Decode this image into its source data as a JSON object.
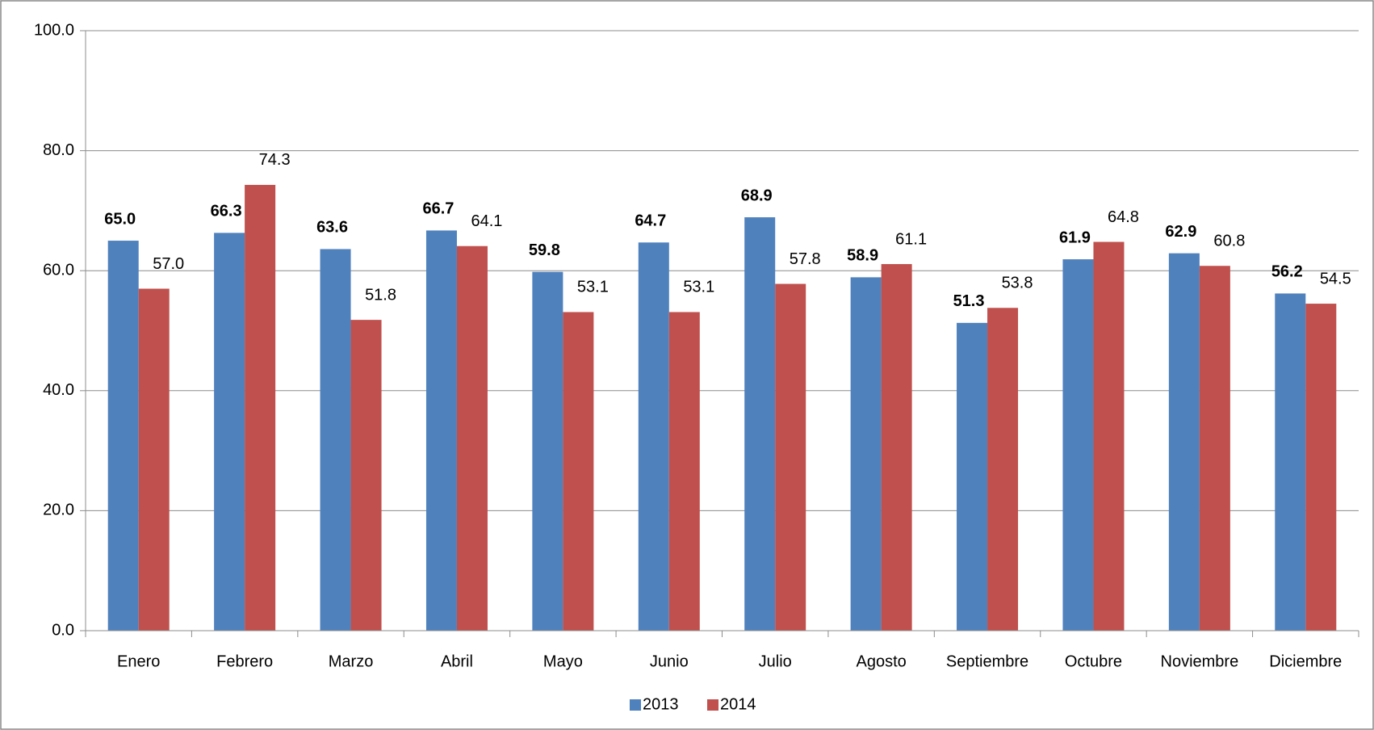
{
  "chart_data": {
    "type": "bar",
    "categories": [
      "Enero",
      "Febrero",
      "Marzo",
      "Abril",
      "Mayo",
      "Junio",
      "Julio",
      "Agosto",
      "Septiembre",
      "Octubre",
      "Noviembre",
      "Diciembre"
    ],
    "series": [
      {
        "name": "2013",
        "color": "#4f81bd",
        "label_color": "#1a1ae6",
        "label_bold": true,
        "values": [
          65.0,
          66.3,
          63.6,
          66.7,
          59.8,
          64.7,
          68.9,
          58.9,
          51.3,
          61.9,
          62.9,
          56.2
        ],
        "value_labels": [
          "65.0",
          "66.3",
          "63.6",
          "66.7",
          "59.8",
          "64.7",
          "68.9",
          "58.9",
          "51.3",
          "61.9",
          "62.9",
          "56.2"
        ]
      },
      {
        "name": "2014",
        "color": "#c0504d",
        "label_color": "#000000",
        "label_bold": false,
        "values": [
          57.0,
          74.3,
          51.8,
          64.1,
          53.1,
          53.1,
          57.8,
          61.1,
          53.8,
          64.8,
          60.8,
          54.5
        ],
        "value_labels": [
          "57.0",
          "74.3",
          "51.8",
          "64.1",
          "53.1",
          "53.1",
          "57.8",
          "61.1",
          "53.8",
          "64.8",
          "60.8",
          "54.5"
        ]
      }
    ],
    "ylim": [
      0,
      100
    ],
    "yticks": [
      {
        "value": 0,
        "label": "0.0"
      },
      {
        "value": 20,
        "label": "20.0"
      },
      {
        "value": 40,
        "label": "40.0"
      },
      {
        "value": 60,
        "label": "60.0"
      },
      {
        "value": 80,
        "label": "80.0"
      },
      {
        "value": 100,
        "label": "100.0"
      }
    ],
    "grid": true,
    "legend": "bottom"
  }
}
